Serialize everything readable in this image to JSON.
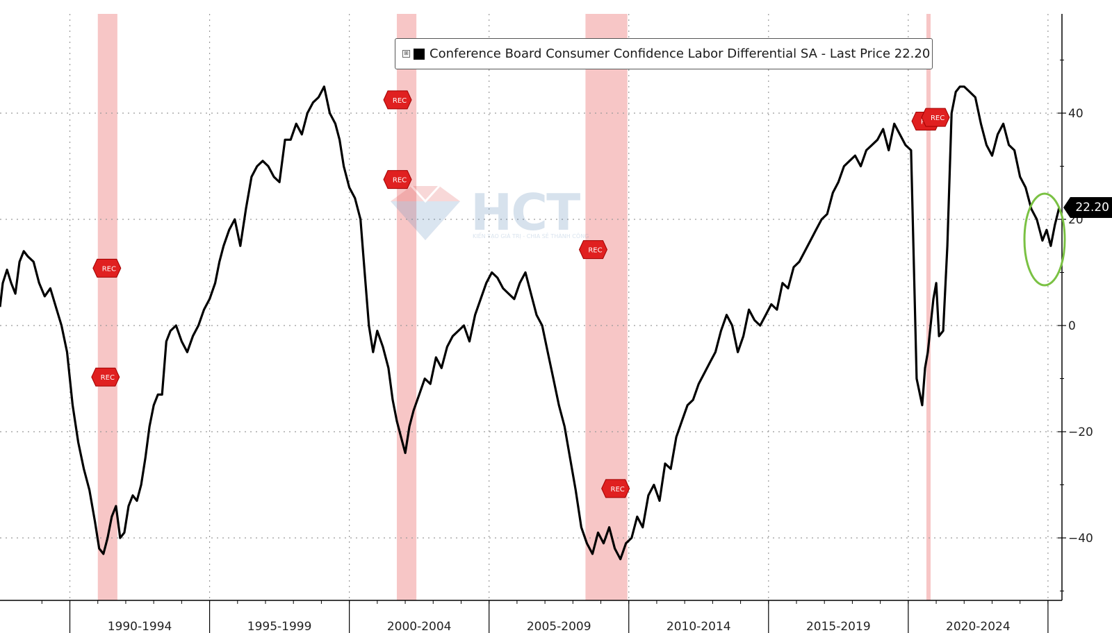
{
  "legend": {
    "toggle_glyph": "⊞",
    "series_color": "#000000",
    "text": "Conference Board Consumer Confidence Labor Differential SA - Last Price 22.20"
  },
  "last_price_tag": "22.20",
  "watermark": {
    "text": "HCT",
    "subtext": "KIẾN TẠO GIÁ TRỊ - CHIA SẺ THÀNH CÔNG"
  },
  "recession_marker_label": "REC",
  "colors": {
    "recession_shade": "#f7c6c6",
    "marker_fill": "#e02020",
    "highlight_ellipse": "#7ac143",
    "line": "#000000",
    "grid": "#999999"
  },
  "chart_data": {
    "type": "line",
    "title": "",
    "xlabel": "",
    "ylabel": "",
    "ylim": [
      -52,
      58
    ],
    "xlim": [
      1987.0,
      2025.0
    ],
    "y_ticks": [
      -40,
      -20,
      0,
      20,
      40
    ],
    "x_period_labels": [
      "1990-1994",
      "1995-1999",
      "2000-2004",
      "2005-2009",
      "2010-2014",
      "2015-2019",
      "2020-2024"
    ],
    "x_period_starts": [
      1989.5,
      1994.5,
      1999.5,
      2004.5,
      2009.5,
      2014.5,
      2019.5,
      2024.5
    ],
    "grid": true,
    "legend_position": "top-center",
    "recessions": [
      [
        1990.5,
        1991.2
      ],
      [
        2001.2,
        2001.9
      ],
      [
        2007.95,
        2009.45
      ],
      [
        2020.15,
        2020.3
      ]
    ],
    "rec_markers": [
      {
        "x": 1990.9,
        "y": 10.8
      },
      {
        "x": 1990.85,
        "y": -9.7
      },
      {
        "x": 2001.3,
        "y": 42.5
      },
      {
        "x": 2001.3,
        "y": 27.5
      },
      {
        "x": 2008.3,
        "y": 14.3
      },
      {
        "x": 2009.1,
        "y": -30.7
      },
      {
        "x": 2020.2,
        "y": 38.5
      },
      {
        "x": 2020.55,
        "y": 39.2
      }
    ],
    "series": [
      {
        "name": "Conference Board Consumer Confidence Labor Differential SA",
        "x": [
          1987.0,
          1987.1,
          1987.25,
          1987.4,
          1987.55,
          1987.7,
          1987.85,
          1988.0,
          1988.2,
          1988.4,
          1988.6,
          1988.8,
          1989.0,
          1989.2,
          1989.4,
          1989.6,
          1989.8,
          1990.0,
          1990.2,
          1990.4,
          1990.55,
          1990.7,
          1990.85,
          1991.0,
          1991.15,
          1991.3,
          1991.45,
          1991.6,
          1991.75,
          1991.9,
          1992.05,
          1992.2,
          1992.35,
          1992.5,
          1992.65,
          1992.8,
          1992.95,
          1993.1,
          1993.3,
          1993.5,
          1993.7,
          1993.9,
          1994.1,
          1994.3,
          1994.5,
          1994.7,
          1994.85,
          1995.0,
          1995.2,
          1995.4,
          1995.6,
          1995.8,
          1996.0,
          1996.2,
          1996.4,
          1996.6,
          1996.8,
          1997.0,
          1997.2,
          1997.4,
          1997.6,
          1997.8,
          1998.0,
          1998.2,
          1998.4,
          1998.6,
          1998.8,
          1999.0,
          1999.15,
          1999.3,
          1999.5,
          1999.7,
          1999.9,
          2000.05,
          2000.2,
          2000.35,
          2000.5,
          2000.7,
          2000.9,
          2001.05,
          2001.2,
          2001.35,
          2001.5,
          2001.65,
          2001.8,
          2002.0,
          2002.2,
          2002.4,
          2002.6,
          2002.8,
          2003.0,
          2003.2,
          2003.4,
          2003.6,
          2003.8,
          2004.0,
          2004.2,
          2004.4,
          2004.6,
          2004.8,
          2005.0,
          2005.2,
          2005.4,
          2005.6,
          2005.8,
          2006.0,
          2006.2,
          2006.4,
          2006.6,
          2006.8,
          2007.0,
          2007.2,
          2007.4,
          2007.6,
          2007.8,
          2008.0,
          2008.2,
          2008.4,
          2008.6,
          2008.8,
          2009.0,
          2009.2,
          2009.4,
          2009.6,
          2009.8,
          2010.0,
          2010.2,
          2010.4,
          2010.6,
          2010.8,
          2011.0,
          2011.2,
          2011.4,
          2011.6,
          2011.8,
          2012.0,
          2012.2,
          2012.4,
          2012.6,
          2012.8,
          2013.0,
          2013.2,
          2013.4,
          2013.6,
          2013.8,
          2014.0,
          2014.2,
          2014.4,
          2014.6,
          2014.8,
          2015.0,
          2015.2,
          2015.4,
          2015.6,
          2015.8,
          2016.0,
          2016.2,
          2016.4,
          2016.6,
          2016.8,
          2017.0,
          2017.2,
          2017.4,
          2017.6,
          2017.8,
          2018.0,
          2018.2,
          2018.4,
          2018.6,
          2018.8,
          2019.0,
          2019.2,
          2019.4,
          2019.6,
          2019.8,
          2020.0,
          2020.1,
          2020.2,
          2020.3,
          2020.4,
          2020.5,
          2020.6,
          2020.75,
          2020.9,
          2021.05,
          2021.2,
          2021.35,
          2021.5,
          2021.7,
          2021.9,
          2022.1,
          2022.3,
          2022.5,
          2022.7,
          2022.9,
          2023.1,
          2023.3,
          2023.5,
          2023.7,
          2023.9,
          2024.1,
          2024.3,
          2024.45,
          2024.6,
          2024.75,
          2024.9
        ],
        "y": [
          3.5,
          8,
          10.5,
          8,
          6,
          12,
          14,
          13,
          12,
          8,
          5.5,
          7,
          3.5,
          0,
          -5,
          -15,
          -22,
          -27,
          -31,
          -37,
          -42,
          -43,
          -40,
          -36,
          -34,
          -40,
          -39,
          -34,
          -32,
          -33,
          -30,
          -25,
          -19,
          -15,
          -13,
          -13,
          -3,
          -1,
          0,
          -3,
          -5,
          -2,
          0,
          3,
          5,
          8,
          12,
          15,
          18,
          20,
          15,
          22,
          28,
          30,
          31,
          30,
          28,
          27,
          35,
          35,
          38,
          36,
          40,
          42,
          43,
          45,
          40,
          38,
          35,
          30,
          26,
          24,
          20,
          10,
          0,
          -5,
          -1,
          -4,
          -8,
          -14,
          -18,
          -21,
          -24,
          -19,
          -16,
          -13,
          -10,
          -11,
          -6,
          -8,
          -4,
          -2,
          -1,
          0,
          -3,
          2,
          5,
          8,
          10,
          9,
          7,
          6,
          5,
          8,
          10,
          6,
          2,
          0,
          -5,
          -10,
          -15,
          -19,
          -25,
          -31,
          -38,
          -41,
          -43,
          -39,
          -41,
          -38,
          -42,
          -44,
          -41,
          -40,
          -36,
          -38,
          -32,
          -30,
          -33,
          -26,
          -27,
          -21,
          -18,
          -15,
          -14,
          -11,
          -9,
          -7,
          -5,
          -1,
          2,
          0,
          -5,
          -2,
          3,
          1,
          0,
          2,
          4,
          3,
          8,
          7,
          11,
          12,
          14,
          16,
          18,
          20,
          21,
          25,
          27,
          30,
          31,
          32,
          30,
          33,
          34,
          35,
          37,
          33,
          38,
          36,
          34,
          33,
          -10,
          -15,
          -8,
          -5,
          0,
          5,
          8,
          -2,
          -1,
          15,
          40,
          44,
          45,
          45,
          44,
          43,
          38,
          34,
          32,
          36,
          38,
          34,
          33,
          28,
          26,
          22,
          20,
          16,
          18,
          15,
          19,
          22.2
        ]
      }
    ]
  }
}
